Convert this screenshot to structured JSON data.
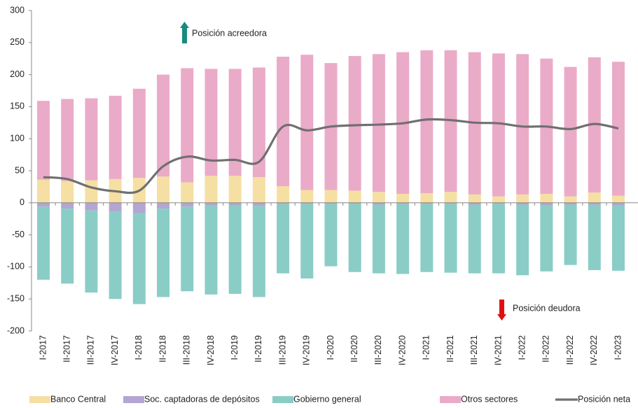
{
  "chart_data": {
    "type": "bar",
    "categories": [
      "I-2017",
      "II-2017",
      "III-2017",
      "IV-2017",
      "I-2018",
      "II-2018",
      "III-2018",
      "IV-2018",
      "I-2019",
      "II-2019",
      "III-2019",
      "IV-2019",
      "I-2020",
      "II-2020",
      "III-2020",
      "IV-2020",
      "I-2021",
      "II-2021",
      "III-2021",
      "IV-2021",
      "I-2022",
      "II-2022",
      "III-2022",
      "IV-2022",
      "I-2023"
    ],
    "series": [
      {
        "name": "Banco Central",
        "type": "bar",
        "color": "#f5dfa3",
        "values": [
          36,
          34,
          35,
          37,
          39,
          41,
          32,
          42,
          42,
          40,
          26,
          20,
          20,
          19,
          17,
          14,
          15,
          17,
          13,
          10,
          13,
          14,
          10,
          16,
          11
        ]
      },
      {
        "name": "Soc. captadoras de depósitos",
        "type": "bar",
        "color": "#b3a6d3",
        "values": [
          -6,
          -9,
          -12,
          -14,
          -16,
          -9,
          -6,
          -4,
          -4,
          -5,
          -2,
          -2,
          -2,
          -2,
          -3,
          -2,
          -2,
          -2,
          -3,
          -2,
          -3,
          -4,
          -3,
          -3,
          -4
        ]
      },
      {
        "name": "Gobierno general",
        "type": "bar",
        "color": "#8acdc6",
        "values": [
          -114,
          -117,
          -128,
          -136,
          -142,
          -138,
          -132,
          -139,
          -138,
          -142,
          -108,
          -116,
          -97,
          -106,
          -107,
          -109,
          -106,
          -107,
          -107,
          -108,
          -110,
          -103,
          -94,
          -102,
          -102
        ]
      },
      {
        "name": "Otros sectores",
        "type": "bar",
        "color": "#eaabc8",
        "values": [
          123,
          128,
          128,
          130,
          139,
          159,
          178,
          167,
          167,
          171,
          202,
          211,
          198,
          210,
          215,
          221,
          223,
          221,
          222,
          223,
          219,
          211,
          202,
          211,
          209
        ]
      },
      {
        "name": "Posición neta",
        "type": "line",
        "color": "#707070",
        "values": [
          40,
          37,
          24,
          18,
          19,
          57,
          72,
          66,
          67,
          64,
          119,
          113,
          119,
          121,
          122,
          124,
          130,
          129,
          125,
          124,
          119,
          119,
          115,
          123,
          116
        ]
      }
    ],
    "ylim": [
      -200,
      300
    ],
    "yticks": [
      -200,
      -150,
      -100,
      -50,
      0,
      50,
      100,
      150,
      200,
      250,
      300
    ],
    "annotations": [
      "Posición acreedora",
      "Posición deudora"
    ],
    "grid": false
  }
}
